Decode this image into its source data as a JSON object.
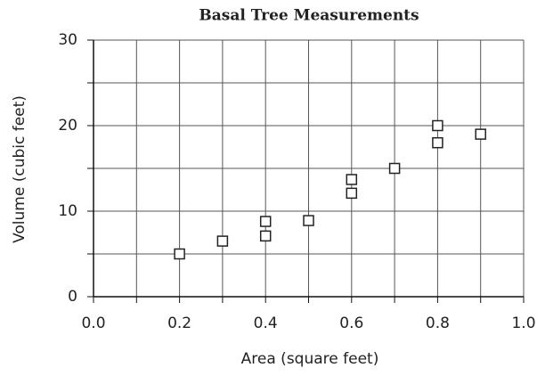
{
  "chart_data": {
    "type": "scatter",
    "title": "Basal Tree Measurements",
    "x_label": "Area (square feet)",
    "y_label": "Volume (cubic feet)",
    "x": [
      0.2,
      0.3,
      0.4,
      0.4,
      0.5,
      0.6,
      0.6,
      0.7,
      0.8,
      0.8,
      0.9
    ],
    "values": [
      5,
      6.5,
      8.8,
      7.1,
      8.9,
      13.7,
      12.1,
      15,
      20,
      18,
      19
    ],
    "color": "#222222",
    "xlim": [
      0,
      1
    ],
    "ylim": [
      0,
      30
    ],
    "xticks": [
      {
        "value": 0,
        "label": "0.0"
      },
      {
        "value": 0.2,
        "label": "0.2"
      },
      {
        "value": 0.4,
        "label": "0.4"
      },
      {
        "value": 0.6,
        "label": "0.6"
      },
      {
        "value": 0.8,
        "label": "0.8"
      },
      {
        "value": 1,
        "label": "1.0"
      }
    ],
    "yticks": [
      0,
      10,
      20,
      30
    ],
    "xgrid": [
      0.1,
      0.2,
      0.3,
      0.4,
      0.5,
      0.6,
      0.7,
      0.8,
      0.9,
      1
    ],
    "ygrid": [
      5,
      10,
      15,
      20,
      25,
      30
    ],
    "grid": true
  }
}
